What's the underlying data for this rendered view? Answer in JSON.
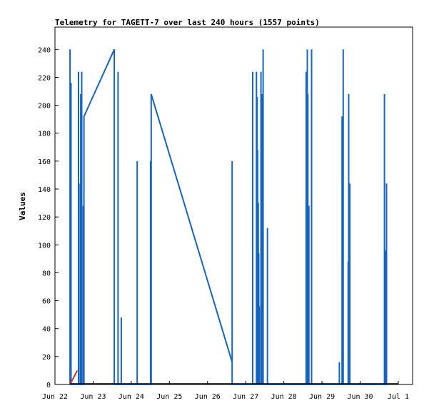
{
  "chart_data": {
    "type": "line",
    "title": "Telemetry for TAGETT-7 over last 240 hours (1557 points)",
    "xlabel": "",
    "ylabel": "Values",
    "ylim": [
      0,
      256
    ],
    "yticks": [
      0,
      20,
      40,
      60,
      80,
      100,
      120,
      140,
      160,
      180,
      200,
      220,
      240
    ],
    "xlim": [
      "2022-06-22T00:00",
      "2022-07-01T09:00"
    ],
    "xticks": [
      {
        "label": "Jun 22",
        "t": "2022-06-22T00:00"
      },
      {
        "label": "Jun 23",
        "t": "2022-06-23T00:00"
      },
      {
        "label": "Jun 24",
        "t": "2022-06-24T00:00"
      },
      {
        "label": "Jun 25",
        "t": "2022-06-25T00:00"
      },
      {
        "label": "Jun 26",
        "t": "2022-06-26T00:00"
      },
      {
        "label": "Jun 27",
        "t": "2022-06-27T00:00"
      },
      {
        "label": "Jun 28",
        "t": "2022-06-28T00:00"
      },
      {
        "label": "Jun 29",
        "t": "2022-06-29T00:00"
      },
      {
        "label": "Jun 30",
        "t": "2022-06-30T00:00"
      },
      {
        "label": "Jul 1",
        "t": "2022-07-01T00:00"
      }
    ],
    "grid": false,
    "legend": "none",
    "series": [
      {
        "color": "#1565c0",
        "points": [
          [
            "2022-06-22T09:28",
            0
          ],
          [
            "2022-06-22T09:28",
            240
          ],
          [
            "2022-06-22T09:28",
            0
          ],
          [
            "2022-06-22T10:06",
            0
          ],
          [
            "2022-06-22T10:06",
            216
          ],
          [
            "2022-06-22T10:06",
            0
          ],
          [
            "2022-06-22T14:49",
            0
          ],
          [
            "2022-06-22T14:49",
            224
          ],
          [
            "2022-06-22T14:49",
            0
          ],
          [
            "2022-06-22T15:50",
            0
          ],
          [
            "2022-06-22T15:50",
            144
          ],
          [
            "2022-06-22T15:50",
            0
          ],
          [
            "2022-06-22T16:12",
            0
          ],
          [
            "2022-06-22T16:12",
            208
          ],
          [
            "2022-06-22T16:12",
            0
          ],
          [
            "2022-06-22T16:51",
            0
          ],
          [
            "2022-06-22T16:51",
            224
          ],
          [
            "2022-06-22T16:51",
            0
          ],
          [
            "2022-06-22T17:51",
            0
          ],
          [
            "2022-06-22T17:51",
            128
          ],
          [
            "2022-06-22T17:51",
            0
          ],
          [
            "2022-06-22T18:13",
            0
          ],
          [
            "2022-06-22T18:13",
            192
          ],
          [
            "2022-06-23T13:18",
            240
          ],
          [
            "2022-06-23T13:18",
            0
          ],
          [
            "2022-06-23T15:41",
            0
          ],
          [
            "2022-06-23T15:41",
            224
          ],
          [
            "2022-06-23T15:41",
            0
          ],
          [
            "2022-06-23T17:43",
            0
          ],
          [
            "2022-06-23T17:43",
            48
          ],
          [
            "2022-06-23T17:43",
            0
          ],
          [
            "2022-06-24T03:45",
            0
          ],
          [
            "2022-06-24T03:45",
            160
          ],
          [
            "2022-06-24T03:45",
            0
          ],
          [
            "2022-06-24T12:09",
            0
          ],
          [
            "2022-06-24T12:09",
            160
          ],
          [
            "2022-06-24T12:09",
            0
          ],
          [
            "2022-06-24T12:31",
            0
          ],
          [
            "2022-06-24T12:31",
            208
          ],
          [
            "2022-06-26T15:27",
            16
          ],
          [
            "2022-06-26T15:27",
            160
          ],
          [
            "2022-06-26T15:27",
            0
          ],
          [
            "2022-06-27T04:24",
            0
          ],
          [
            "2022-06-27T04:24",
            224
          ],
          [
            "2022-06-27T04:24",
            0
          ],
          [
            "2022-06-27T06:48",
            0
          ],
          [
            "2022-06-27T06:48",
            224
          ],
          [
            "2022-06-27T06:48",
            0
          ],
          [
            "2022-06-27T07:11",
            0
          ],
          [
            "2022-06-27T07:11",
            206
          ],
          [
            "2022-06-27T07:11",
            0
          ],
          [
            "2022-06-27T07:31",
            0
          ],
          [
            "2022-06-27T07:31",
            168
          ],
          [
            "2022-06-27T07:31",
            0
          ],
          [
            "2022-06-27T07:54",
            0
          ],
          [
            "2022-06-27T07:54",
            130
          ],
          [
            "2022-06-27T07:54",
            0
          ],
          [
            "2022-06-27T08:13",
            0
          ],
          [
            "2022-06-27T08:13",
            94
          ],
          [
            "2022-06-27T08:13",
            0
          ],
          [
            "2022-06-27T08:34",
            0
          ],
          [
            "2022-06-27T08:34",
            56
          ],
          [
            "2022-06-27T08:34",
            0
          ],
          [
            "2022-06-27T09:36",
            0
          ],
          [
            "2022-06-27T09:36",
            224
          ],
          [
            "2022-06-27T09:36",
            0
          ],
          [
            "2022-06-27T09:56",
            0
          ],
          [
            "2022-06-27T09:56",
            18
          ],
          [
            "2022-06-27T09:56",
            0
          ],
          [
            "2022-06-27T10:16",
            0
          ],
          [
            "2022-06-27T10:16",
            208
          ],
          [
            "2022-06-27T10:16",
            0
          ],
          [
            "2022-06-27T10:57",
            0
          ],
          [
            "2022-06-27T10:57",
            240
          ],
          [
            "2022-06-27T10:57",
            0
          ],
          [
            "2022-06-27T13:43",
            0
          ],
          [
            "2022-06-27T13:43",
            112
          ],
          [
            "2022-06-27T13:43",
            0
          ],
          [
            "2022-06-28T14:03",
            0
          ],
          [
            "2022-06-28T14:03",
            224
          ],
          [
            "2022-06-28T14:03",
            0
          ],
          [
            "2022-06-28T14:45",
            0
          ],
          [
            "2022-06-28T14:45",
            240
          ],
          [
            "2022-06-28T14:45",
            0
          ],
          [
            "2022-06-28T15:07",
            0
          ],
          [
            "2022-06-28T15:07",
            208
          ],
          [
            "2022-06-28T15:07",
            0
          ],
          [
            "2022-06-28T15:46",
            0
          ],
          [
            "2022-06-28T15:46",
            128
          ],
          [
            "2022-06-28T15:46",
            0
          ],
          [
            "2022-06-28T17:28",
            0
          ],
          [
            "2022-06-28T17:28",
            240
          ],
          [
            "2022-06-28T17:28",
            0
          ],
          [
            "2022-06-29T10:56",
            0
          ],
          [
            "2022-06-29T10:56",
            16
          ],
          [
            "2022-06-29T10:56",
            0
          ],
          [
            "2022-06-29T12:39",
            0
          ],
          [
            "2022-06-29T12:39",
            192
          ],
          [
            "2022-06-29T12:39",
            0
          ],
          [
            "2022-06-29T13:21",
            0
          ],
          [
            "2022-06-29T13:21",
            240
          ],
          [
            "2022-06-29T13:21",
            0
          ],
          [
            "2022-06-29T16:29",
            0
          ],
          [
            "2022-06-29T16:29",
            88
          ],
          [
            "2022-06-29T16:29",
            0
          ],
          [
            "2022-06-29T16:49",
            0
          ],
          [
            "2022-06-29T16:49",
            208
          ],
          [
            "2022-06-29T16:49",
            0
          ],
          [
            "2022-06-29T17:32",
            0
          ],
          [
            "2022-06-29T17:32",
            144
          ],
          [
            "2022-06-29T17:32",
            0
          ],
          [
            "2022-06-30T15:17",
            0
          ],
          [
            "2022-06-30T15:17",
            208
          ],
          [
            "2022-06-30T15:17",
            0
          ],
          [
            "2022-06-30T15:59",
            0
          ],
          [
            "2022-06-30T15:59",
            96
          ],
          [
            "2022-06-30T15:59",
            0
          ],
          [
            "2022-06-30T16:37",
            0
          ],
          [
            "2022-06-30T16:37",
            144
          ],
          [
            "2022-06-30T16:37",
            0
          ]
        ]
      },
      {
        "color": "#d32f2f",
        "points": [
          [
            "2022-06-22T09:28",
            0
          ],
          [
            "2022-06-22T14:03",
            10
          ]
        ]
      }
    ]
  }
}
